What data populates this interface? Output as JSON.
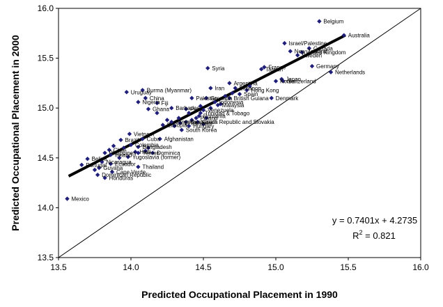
{
  "chart_data": {
    "type": "scatter",
    "xlabel": "Predicted Occupational Placement in 1990",
    "ylabel": "Predicted Occupational Placement in 2000",
    "xlim": [
      13.5,
      16.0
    ],
    "ylim": [
      13.5,
      16.0
    ],
    "xticks": [
      "13.5",
      "14.0",
      "14.5",
      "15.0",
      "15.5",
      "16.0"
    ],
    "yticks": [
      "13.5",
      "14.0",
      "14.5",
      "15.0",
      "15.5",
      "16.0"
    ],
    "grid": false,
    "marker_color": "#1f1f7a",
    "trendline": {
      "slope": 0.7401,
      "intercept": 4.2735,
      "x_range": [
        13.57,
        15.48
      ]
    },
    "reference_line": "y = x",
    "equation_label": "y = 0.7401x + 4.2735",
    "r2_label_prefix": "R",
    "r2_label_exponent": "2",
    "r2_label_suffix": " = 0.821",
    "points": [
      {
        "x": 15.3,
        "y": 15.87,
        "label": "Belgium"
      },
      {
        "x": 15.47,
        "y": 15.73,
        "label": "Australia"
      },
      {
        "x": 15.06,
        "y": 15.65,
        "label": "Israel/Palestine"
      },
      {
        "x": 15.23,
        "y": 15.6,
        "label": "Canada"
      },
      {
        "x": 15.1,
        "y": 15.57,
        "label": "New Zealand"
      },
      {
        "x": 15.18,
        "y": 15.56,
        "label": "United Kingdom"
      },
      {
        "x": 15.15,
        "y": 15.53,
        "label": "Sweden"
      },
      {
        "x": 14.92,
        "y": 15.41,
        "label": "France"
      },
      {
        "x": 14.9,
        "y": 15.39,
        "label": "Taiwan"
      },
      {
        "x": 15.25,
        "y": 15.42,
        "label": "Germany"
      },
      {
        "x": 15.38,
        "y": 15.36,
        "label": "Netherlands"
      },
      {
        "x": 14.53,
        "y": 15.4,
        "label": "Syria"
      },
      {
        "x": 15.04,
        "y": 15.29,
        "label": "Japan"
      },
      {
        "x": 15.05,
        "y": 15.27,
        "label": "Switzerland"
      },
      {
        "x": 15.0,
        "y": 15.27,
        "label": "Korea"
      },
      {
        "x": 14.68,
        "y": 15.25,
        "label": "Argentina"
      },
      {
        "x": 14.72,
        "y": 15.2,
        "label": "Lebanon"
      },
      {
        "x": 14.55,
        "y": 15.2,
        "label": "Iran"
      },
      {
        "x": 14.8,
        "y": 15.18,
        "label": "Hong Kong"
      },
      {
        "x": 14.75,
        "y": 15.14,
        "label": "Spain"
      },
      {
        "x": 14.97,
        "y": 15.1,
        "label": "Denmark"
      },
      {
        "x": 13.97,
        "y": 15.16,
        "label": "Uruguay"
      },
      {
        "x": 14.08,
        "y": 15.18,
        "label": "Burma (Myanmar)"
      },
      {
        "x": 14.1,
        "y": 15.1,
        "label": "China"
      },
      {
        "x": 14.05,
        "y": 15.06,
        "label": "Nigeria"
      },
      {
        "x": 14.18,
        "y": 15.05,
        "label": "Fiji"
      },
      {
        "x": 14.12,
        "y": 14.99,
        "label": "Ghana"
      },
      {
        "x": 14.42,
        "y": 15.1,
        "label": "Pakistan"
      },
      {
        "x": 14.52,
        "y": 15.1,
        "label": "Grenada"
      },
      {
        "x": 14.68,
        "y": 15.1,
        "label": "British Guiana"
      },
      {
        "x": 14.58,
        "y": 15.06,
        "label": "Indonesia"
      },
      {
        "x": 14.6,
        "y": 15.03,
        "label": "Malaysia"
      },
      {
        "x": 14.28,
        "y": 15.0,
        "label": "Barbados"
      },
      {
        "x": 14.38,
        "y": 14.99,
        "label": "Peru"
      },
      {
        "x": 14.5,
        "y": 14.98,
        "label": "Venezuela"
      },
      {
        "x": 14.48,
        "y": 14.95,
        "label": "Trinidad & Tobago"
      },
      {
        "x": 14.47,
        "y": 14.92,
        "label": "Romania"
      },
      {
        "x": 14.45,
        "y": 14.9,
        "label": "Poland"
      },
      {
        "x": 14.28,
        "y": 14.86,
        "label": "Jamaica"
      },
      {
        "x": 14.22,
        "y": 14.83,
        "label": "Ethiopia"
      },
      {
        "x": 14.34,
        "y": 14.85,
        "label": "El Salvador"
      },
      {
        "x": 14.38,
        "y": 14.86,
        "label": "Guatemala"
      },
      {
        "x": 14.46,
        "y": 14.86,
        "label": "Czech Republic and Slovakia"
      },
      {
        "x": 14.4,
        "y": 14.82,
        "label": "Hungary"
      },
      {
        "x": 14.35,
        "y": 14.78,
        "label": "South Korea"
      },
      {
        "x": 13.99,
        "y": 14.74,
        "label": "Vietnam"
      },
      {
        "x": 13.93,
        "y": 14.68,
        "label": "Brazil"
      },
      {
        "x": 14.08,
        "y": 14.69,
        "label": "Cuba"
      },
      {
        "x": 14.2,
        "y": 14.69,
        "label": "Afghanistan"
      },
      {
        "x": 14.0,
        "y": 14.63,
        "label": "Colombia"
      },
      {
        "x": 14.05,
        "y": 14.61,
        "label": "Bangladesh"
      },
      {
        "x": 13.85,
        "y": 14.58,
        "label": "Chile"
      },
      {
        "x": 13.82,
        "y": 14.55,
        "label": "Philippines"
      },
      {
        "x": 13.86,
        "y": 14.53,
        "label": "Ireland"
      },
      {
        "x": 14.03,
        "y": 14.56,
        "label": "Haiti"
      },
      {
        "x": 14.05,
        "y": 14.55,
        "label": "Yemen"
      },
      {
        "x": 14.15,
        "y": 14.55,
        "label": "Dominica"
      },
      {
        "x": 13.98,
        "y": 14.51,
        "label": "Yugoslavia (former)"
      },
      {
        "x": 13.7,
        "y": 14.49,
        "label": "Belize"
      },
      {
        "x": 13.66,
        "y": 14.43,
        "label": "Portugal"
      },
      {
        "x": 13.8,
        "y": 14.46,
        "label": "Nicaragua"
      },
      {
        "x": 13.86,
        "y": 14.44,
        "label": "Ecuador"
      },
      {
        "x": 13.78,
        "y": 14.4,
        "label": "Guyana"
      },
      {
        "x": 14.05,
        "y": 14.41,
        "label": "Thailand"
      },
      {
        "x": 13.87,
        "y": 14.36,
        "label": "Cape Verde"
      },
      {
        "x": 13.77,
        "y": 14.33,
        "label": "Dominican Republic"
      },
      {
        "x": 13.82,
        "y": 14.3,
        "label": "Honduras"
      },
      {
        "x": 13.56,
        "y": 14.09,
        "label": "Mexico"
      },
      {
        "x": 13.95,
        "y": 14.6,
        "label": ""
      },
      {
        "x": 13.88,
        "y": 14.62,
        "label": ""
      },
      {
        "x": 14.12,
        "y": 14.6,
        "label": ""
      },
      {
        "x": 14.1,
        "y": 14.57,
        "label": ""
      },
      {
        "x": 13.92,
        "y": 14.5,
        "label": ""
      },
      {
        "x": 13.75,
        "y": 14.38,
        "label": ""
      },
      {
        "x": 14.3,
        "y": 14.82,
        "label": ""
      },
      {
        "x": 14.42,
        "y": 14.88,
        "label": ""
      },
      {
        "x": 14.52,
        "y": 14.9,
        "label": ""
      },
      {
        "x": 14.55,
        "y": 15.0,
        "label": ""
      },
      {
        "x": 14.62,
        "y": 15.04,
        "label": ""
      },
      {
        "x": 14.4,
        "y": 14.95,
        "label": ""
      },
      {
        "x": 14.48,
        "y": 15.02,
        "label": ""
      },
      {
        "x": 14.65,
        "y": 15.12,
        "label": ""
      },
      {
        "x": 14.82,
        "y": 15.22,
        "label": ""
      },
      {
        "x": 14.7,
        "y": 15.15,
        "label": ""
      },
      {
        "x": 14.33,
        "y": 14.9,
        "label": ""
      },
      {
        "x": 14.25,
        "y": 14.88,
        "label": ""
      },
      {
        "x": 14.5,
        "y": 14.84,
        "label": ""
      },
      {
        "x": 14.18,
        "y": 14.95,
        "label": ""
      }
    ]
  }
}
